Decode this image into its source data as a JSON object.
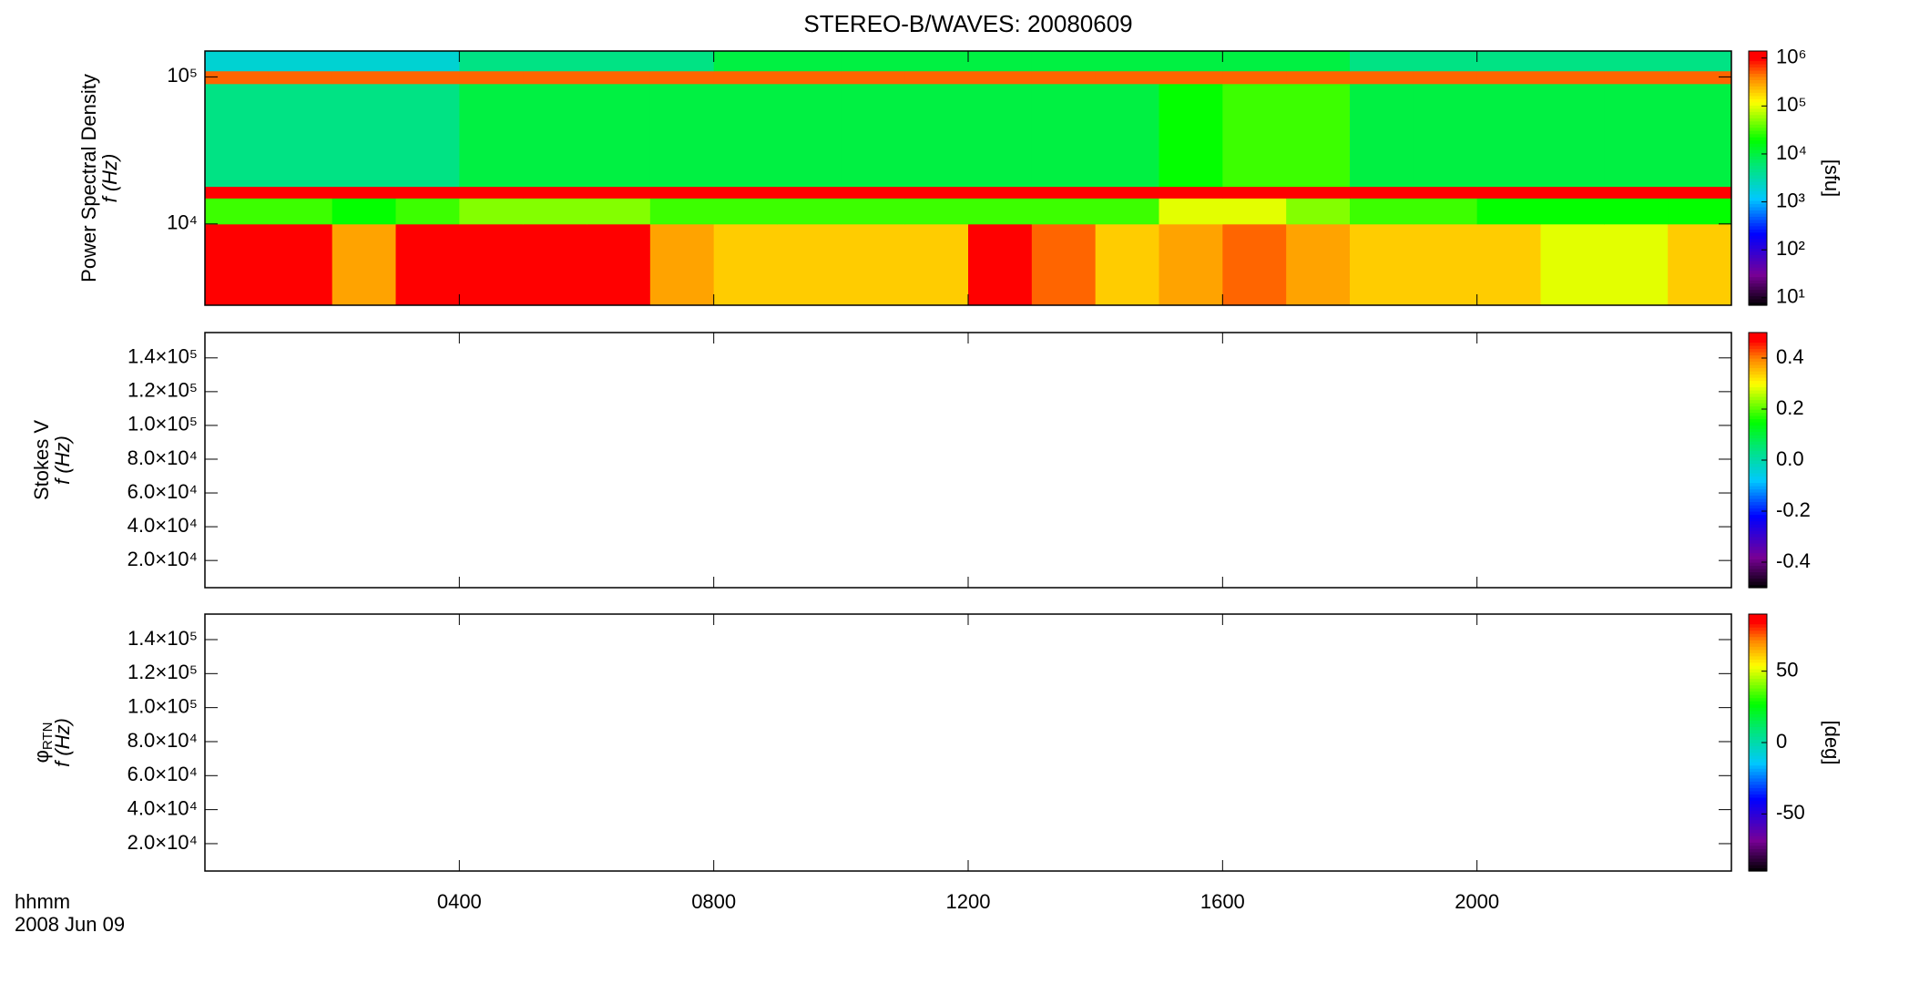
{
  "chart_data": [
    {
      "type": "heatmap",
      "title": "STEREO-B/WAVES: 20080609",
      "ylabel": "Power Spectral Density",
      "ylabel2": "f (Hz)",
      "ylog": true,
      "xlim": [
        0,
        24
      ],
      "ylim": [
        2800,
        150000
      ],
      "yticks": [
        {
          "value": 10000,
          "label": "10⁴"
        },
        {
          "value": 100000,
          "label": "10⁵"
        }
      ],
      "x_edges": [
        0,
        1,
        2,
        3,
        4,
        5,
        6,
        7,
        8,
        9,
        10,
        11,
        12,
        13,
        14,
        15,
        16,
        17,
        18,
        19,
        20,
        21,
        22,
        23,
        24
      ],
      "y_edges": [
        2800,
        10000,
        15000,
        18000,
        90000,
        110000,
        150000
      ],
      "z": [
        [
          1000000.0,
          1000000.0,
          300000.0,
          1000000.0,
          1000000.0,
          1000000.0,
          1000000.0,
          300000.0,
          200000.0,
          200000.0,
          200000.0,
          200000.0,
          1000000.0,
          500000.0,
          200000.0,
          300000.0,
          500000.0,
          300000.0,
          200000.0,
          200000.0,
          200000.0,
          100000.0,
          100000.0,
          200000.0
        ],
        [
          30000.0,
          30000.0,
          20000.0,
          30000.0,
          50000.0,
          50000.0,
          50000.0,
          30000.0,
          30000.0,
          30000.0,
          30000.0,
          30000.0,
          30000.0,
          30000.0,
          30000.0,
          100000.0,
          100000.0,
          50000.0,
          30000.0,
          30000.0,
          20000.0,
          20000.0,
          20000.0,
          20000.0
        ],
        [
          1000000.0,
          1000000.0,
          1000000.0,
          1000000.0,
          1000000.0,
          1000000.0,
          1000000.0,
          1000000.0,
          1000000.0,
          1000000.0,
          1000000.0,
          1000000.0,
          1000000.0,
          1000000.0,
          1000000.0,
          1000000.0,
          1000000.0,
          1000000.0,
          1000000.0,
          1000000.0,
          1000000.0,
          1000000.0,
          1000000.0,
          1000000.0
        ],
        [
          5000.0,
          5000.0,
          5000.0,
          5000.0,
          10000.0,
          10000.0,
          10000.0,
          10000.0,
          10000.0,
          10000.0,
          10000.0,
          10000.0,
          10000.0,
          10000.0,
          10000.0,
          20000.0,
          30000.0,
          30000.0,
          10000.0,
          10000.0,
          10000.0,
          10000.0,
          10000.0,
          10000.0
        ],
        [
          500000.0,
          500000.0,
          500000.0,
          500000.0,
          500000.0,
          500000.0,
          500000.0,
          500000.0,
          500000.0,
          500000.0,
          500000.0,
          500000.0,
          500000.0,
          500000.0,
          500000.0,
          500000.0,
          500000.0,
          500000.0,
          500000.0,
          500000.0,
          500000.0,
          500000.0,
          500000.0,
          500000.0
        ],
        [
          2000.0,
          2000.0,
          2000.0,
          2000.0,
          5000.0,
          5000.0,
          5000.0,
          5000.0,
          10000.0,
          10000.0,
          10000.0,
          10000.0,
          10000.0,
          10000.0,
          10000.0,
          10000.0,
          10000.0,
          10000.0,
          5000.0,
          5000.0,
          5000.0,
          5000.0,
          5000.0,
          5000.0
        ]
      ],
      "zlog": true,
      "zlim": [
        7,
        1400000
      ],
      "zticks": [
        {
          "value": 10,
          "label": "10¹"
        },
        {
          "value": 100,
          "label": "10²"
        },
        {
          "value": 1000,
          "label": "10³"
        },
        {
          "value": 10000,
          "label": "10⁴"
        },
        {
          "value": 100000,
          "label": "10⁵"
        },
        {
          "value": 1000000,
          "label": "10⁶"
        }
      ],
      "zlabel": "[sfu]"
    },
    {
      "type": "heatmap",
      "ylabel": "Stokes V",
      "ylabel2": "f (Hz)",
      "xlim": [
        0,
        24
      ],
      "ylim": [
        3900,
        155000
      ],
      "yticks": [
        {
          "value": 20000,
          "label": "2.0×10⁴"
        },
        {
          "value": 40000,
          "label": "4.0×10⁴"
        },
        {
          "value": 60000,
          "label": "6.0×10⁴"
        },
        {
          "value": 80000,
          "label": "8.0×10⁴"
        },
        {
          "value": 100000,
          "label": "1.0×10⁵"
        },
        {
          "value": 120000,
          "label": "1.2×10⁵"
        },
        {
          "value": 140000,
          "label": "1.4×10⁵"
        }
      ],
      "zlim": [
        -0.5,
        0.5
      ],
      "zticks": [
        -0.4,
        -0.2,
        {
          "value": 0,
          "label": "0.0"
        },
        0.2,
        0.4
      ]
    },
    {
      "type": "heatmap",
      "ylabel": "φ",
      "ylabel_subscript": "RTN",
      "ylabel2": "f (Hz)",
      "xlim": [
        0,
        24
      ],
      "ylim": [
        3900,
        155000
      ],
      "yticks": [
        {
          "value": 20000,
          "label": "2.0×10⁴"
        },
        {
          "value": 40000,
          "label": "4.0×10⁴"
        },
        {
          "value": 60000,
          "label": "6.0×10⁴"
        },
        {
          "value": 80000,
          "label": "8.0×10⁴"
        },
        {
          "value": 100000,
          "label": "1.0×10⁵"
        },
        {
          "value": 120000,
          "label": "1.2×10⁵"
        },
        {
          "value": 140000,
          "label": "1.4×10⁵"
        }
      ],
      "zlim": [
        -90,
        90
      ],
      "zticks": [
        -50,
        0,
        50
      ],
      "zlabel": "[deg]",
      "xticks": [
        {
          "value": 4,
          "label": "0400"
        },
        {
          "value": 8,
          "label": "0800"
        },
        {
          "value": 12,
          "label": "1200"
        },
        {
          "value": 16,
          "label": "1600"
        },
        {
          "value": 20,
          "label": "2000"
        }
      ],
      "xlabel": "hhmm",
      "xlabel2": "2008 Jun 09"
    }
  ]
}
